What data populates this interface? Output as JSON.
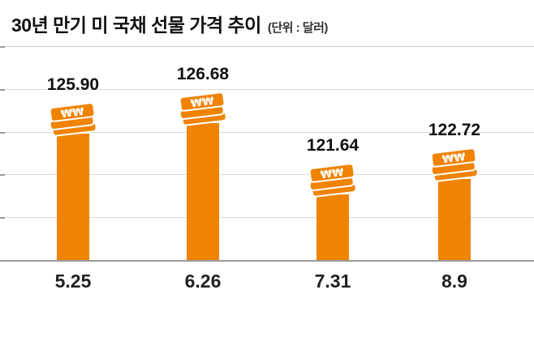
{
  "header": {
    "title": "30년 만기 미 국채 선물 가격 추이",
    "unit": "(단위 : 달러)"
  },
  "chart_data": {
    "type": "bar",
    "title": "30년 만기 미 국채 선물 가격 추이",
    "unit_note": "(단위 : 달러)",
    "categories": [
      "5.25",
      "6.26",
      "7.31",
      "8.9"
    ],
    "values": [
      125.9,
      126.68,
      121.64,
      122.72
    ],
    "value_labels": [
      "125.90",
      "126.68",
      "121.64",
      "122.72"
    ],
    "series_name": "30년 만기 미 국채 선물 가격",
    "ylim": [
      117,
      128
    ],
    "grid": true,
    "legend": "none",
    "bar_color": "#f08300",
    "icon": "money-stack-icon"
  },
  "colors": {
    "bar": "#f08300",
    "grid": "#d9d9d9",
    "axis": "#9a9a9a",
    "text": "#111111"
  }
}
